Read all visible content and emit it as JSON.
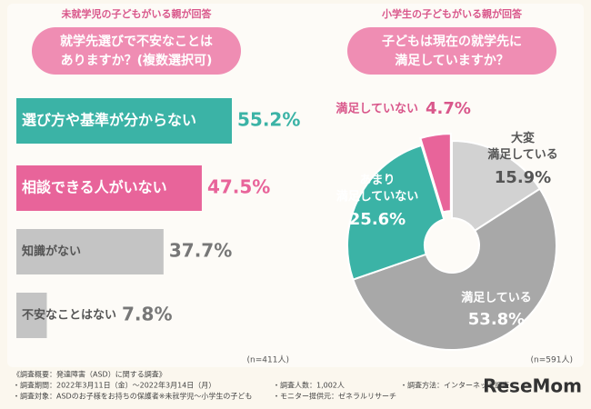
{
  "chart_data": [
    {
      "type": "bar",
      "header": "未就学児の子どもがいる親が回答",
      "title": "就学先選びで不安なことは\nありますか？(複数選択可)",
      "categories": [
        "選び方や基準が分からない",
        "相談できる人がいない",
        "知識がない",
        "不安なことはない"
      ],
      "values": [
        55.2,
        47.5,
        37.7,
        7.8
      ],
      "value_labels": [
        "55.2%",
        "47.5%",
        "37.7%",
        "7.8%"
      ],
      "colors": [
        "#3bb3a6",
        "#e8649a",
        "#c4c4c4",
        "#c4c4c4"
      ],
      "note": "(n=411人)"
    },
    {
      "type": "pie",
      "header": "小学生の子どもがいる親が回答",
      "title": "子どもは現在の就学先に\n満足していますか？",
      "categories": [
        "大変\n満足している",
        "満足している",
        "あまり\n満足していない",
        "満足していない"
      ],
      "values": [
        15.9,
        53.8,
        25.6,
        4.7
      ],
      "value_labels": [
        "15.9%",
        "53.8%",
        "25.6%",
        "4.7%"
      ],
      "colors": [
        "#d2d2d2",
        "#a8a8a8",
        "#3bb3a6",
        "#e8649a"
      ],
      "note": "(n=591人)"
    }
  ],
  "footer": [
    "《調査概要：発達障害（ASD）に関する調査》",
    "・調査期間：2022年3月11日（金）～2022年3月14日（月）",
    "・調査人数：1,002人",
    "・調査方法：インターネット調査",
    "・調査対象：ASDのお子様をお持ちの保護者※未就学児～小学生の子ども",
    "・モニター提供元：ゼネラルリサーチ"
  ],
  "logo": "ReseMom"
}
